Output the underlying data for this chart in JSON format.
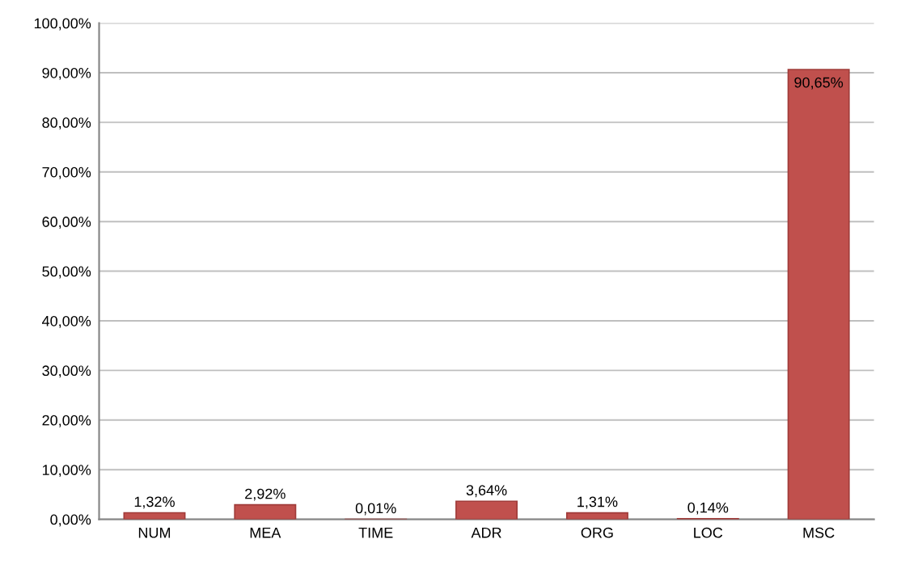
{
  "chart_data": {
    "type": "bar",
    "categories": [
      "NUM",
      "MEA",
      "TIME",
      "ADR",
      "ORG",
      "LOC",
      "MSC"
    ],
    "values": [
      1.32,
      2.92,
      0.01,
      3.64,
      1.31,
      0.14,
      90.65
    ],
    "value_labels": [
      "1,32%",
      "2,92%",
      "0,01%",
      "3,64%",
      "1,31%",
      "0,14%",
      "90,65%"
    ],
    "color": "#c0504d",
    "ylim": [
      0,
      100
    ],
    "yticks": [
      {
        "value": 0,
        "label": "0,00%"
      },
      {
        "value": 10,
        "label": "10,00%"
      },
      {
        "value": 20,
        "label": "20,00%"
      },
      {
        "value": 30,
        "label": "30,00%"
      },
      {
        "value": 40,
        "label": "40,00%"
      },
      {
        "value": 50,
        "label": "50,00%"
      },
      {
        "value": 60,
        "label": "60,00%"
      },
      {
        "value": 70,
        "label": "70,00%"
      },
      {
        "value": 80,
        "label": "80,00%"
      },
      {
        "value": 90,
        "label": "90,00%"
      },
      {
        "value": 100,
        "label": "100,00%"
      }
    ],
    "grid": "y"
  }
}
